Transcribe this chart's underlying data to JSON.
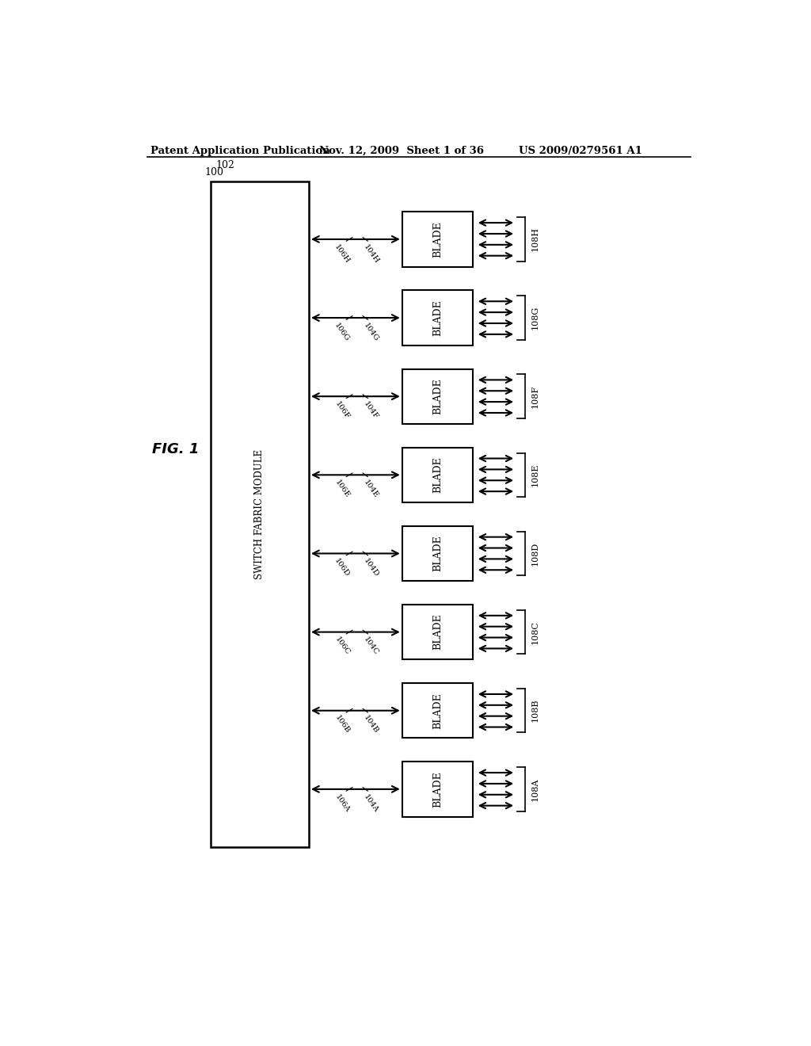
{
  "bg_color": "#ffffff",
  "header_left": "Patent Application Publication",
  "header_mid": "Nov. 12, 2009  Sheet 1 of 36",
  "header_right": "US 2009/0279561 A1",
  "fig_label": "FIG. 1",
  "fig_ref": "1",
  "fig_number": "100",
  "sfm_label": "SWITCH FABRIC MODULE",
  "sfm_ref": "102",
  "blades": [
    "H",
    "G",
    "F",
    "E",
    "D",
    "C",
    "B",
    "A"
  ],
  "blade_refs": [
    "104H",
    "104G",
    "104F",
    "104E",
    "104D",
    "104C",
    "104B",
    "104A"
  ],
  "link_refs": [
    "106H",
    "106G",
    "106F",
    "106E",
    "106D",
    "106C",
    "106B",
    "106A"
  ],
  "blade_labels": [
    "108H",
    "108G",
    "108F",
    "108E",
    "108D",
    "108C",
    "108B",
    "108A"
  ],
  "num_arrows": 4
}
